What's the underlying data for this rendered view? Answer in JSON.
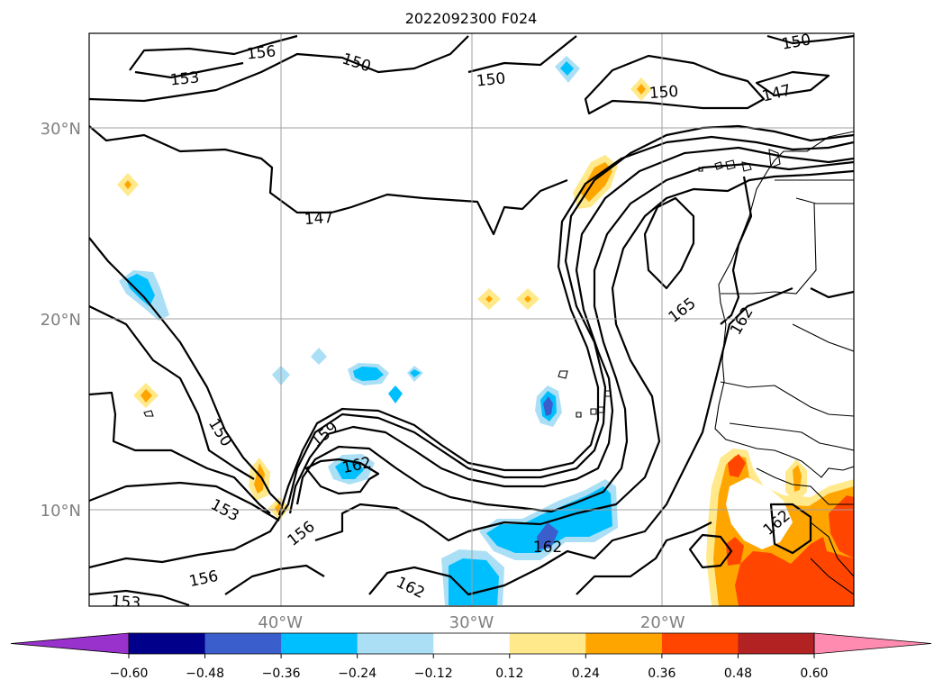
{
  "chart_data": {
    "type": "contour-map",
    "title": "2022092300 F024",
    "x_ticks": [
      {
        "value": -40,
        "label": "40°W"
      },
      {
        "value": -30,
        "label": "30°W"
      },
      {
        "value": -20,
        "label": "20°W"
      }
    ],
    "y_ticks": [
      {
        "value": 10,
        "label": "10°N"
      },
      {
        "value": 20,
        "label": "20°N"
      },
      {
        "value": 30,
        "label": "30°N"
      }
    ],
    "lon_range": [
      -50,
      -10
    ],
    "lat_range": [
      5,
      35
    ],
    "grid": true,
    "contour_labels": [
      "156",
      "153",
      "150",
      "150",
      "150",
      "150",
      "147",
      "147",
      "165",
      "162",
      "150",
      "159",
      "162",
      "153",
      "156",
      "156",
      "162",
      "162",
      "162",
      "153"
    ],
    "colorbar": {
      "orientation": "horizontal",
      "position": "bottom",
      "extend": "both",
      "ticks": [
        "−0.60",
        "−0.48",
        "−0.36",
        "−0.24",
        "−0.12",
        "0.12",
        "0.24",
        "0.36",
        "0.48",
        "0.60"
      ],
      "colors": [
        "#9932cc",
        "#00008b",
        "#3a5fcd",
        "#00bfff",
        "#aadff5",
        "#ffffff",
        "#ffe98a",
        "#ffa500",
        "#ff4500",
        "#b22222",
        "#ff8cb0"
      ]
    }
  }
}
